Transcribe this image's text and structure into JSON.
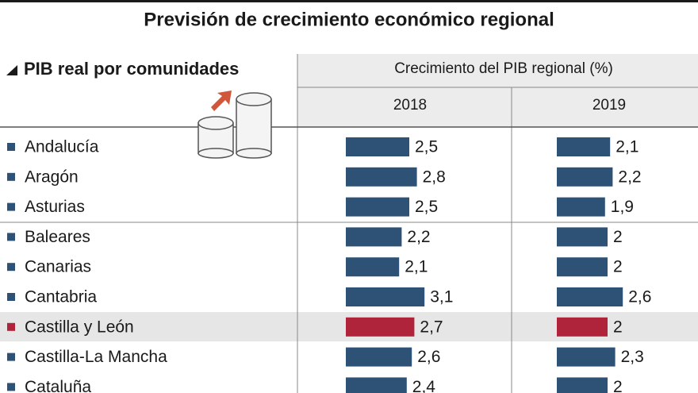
{
  "chart_data": {
    "type": "bar",
    "title": "Previsión de crecimiento económico regional",
    "subtitle": "PIB real por comunidades",
    "value_header": "Crecimiento del PIB regional (%)",
    "categories": [
      "Andalucía",
      "Aragón",
      "Asturias",
      "Baleares",
      "Canarias",
      "Cantabria",
      "Castilla y León",
      "Castilla-La Mancha",
      "Cataluña"
    ],
    "series": [
      {
        "name": "2018",
        "values": [
          2.5,
          2.8,
          2.5,
          2.2,
          2.1,
          3.1,
          2.7,
          2.6,
          2.4
        ],
        "value_labels": [
          "2,5",
          "2,8",
          "2,5",
          "2,2",
          "2,1",
          "3,1",
          "2,7",
          "2,6",
          "2,4"
        ],
        "colors": [
          "#2e5275",
          "#2e5275",
          "#2e5275",
          "#2e5275",
          "#2e5275",
          "#2e5275",
          "#b0243b",
          "#2e5275",
          "#2e5275"
        ]
      },
      {
        "name": "2019",
        "values": [
          2.1,
          2.2,
          1.9,
          2,
          2,
          2.6,
          2,
          2.3,
          2
        ],
        "value_labels": [
          "2,1",
          "2,2",
          "1,9",
          "2",
          "2",
          "2,6",
          "2",
          "2,3",
          "2"
        ],
        "colors": [
          "#2e5275",
          "#2e5275",
          "#2e5275",
          "#2e5275",
          "#2e5275",
          "#2e5275",
          "#b0243b",
          "#2e5275",
          "#2e5275"
        ]
      }
    ]
  }
}
